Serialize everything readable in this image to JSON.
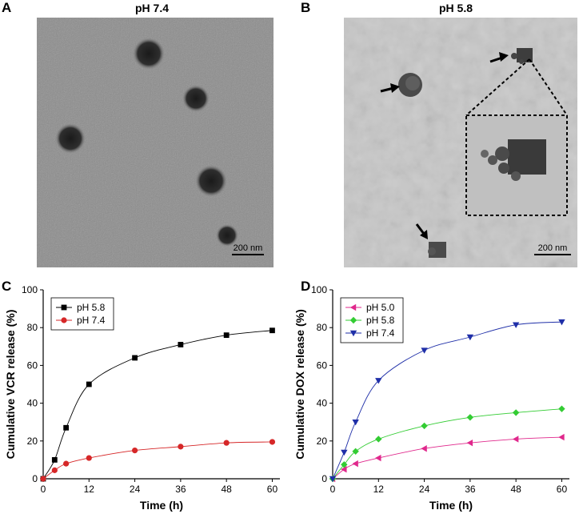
{
  "panels": {
    "a": {
      "letter": "A",
      "title": "pH 7.4",
      "scale": "200 nm"
    },
    "b": {
      "letter": "B",
      "title": "pH 5.8",
      "scale": "200 nm"
    },
    "c": {
      "letter": "C"
    },
    "d": {
      "letter": "D"
    }
  },
  "colors": {
    "black": "#000000",
    "red": "#d62728",
    "magenta": "#e0288c",
    "green": "#33cc33",
    "blue": "#1f2fa8"
  },
  "chart_data": [
    {
      "type": "line",
      "xlabel": "Time (h)",
      "ylabel": "Cumulative VCR release (%)",
      "xlim": [
        0,
        62
      ],
      "ylim": [
        0,
        100
      ],
      "xticks": [
        0,
        12,
        24,
        36,
        48,
        60
      ],
      "yticks": [
        0,
        20,
        40,
        60,
        80,
        100
      ],
      "legend_position": "top-left",
      "series": [
        {
          "name": "pH 5.8",
          "marker": "square",
          "color": "#000000",
          "x": [
            0,
            3,
            6,
            12,
            24,
            36,
            48,
            60
          ],
          "y": [
            0,
            10,
            27,
            50,
            64,
            71,
            76,
            78.5
          ]
        },
        {
          "name": "pH 7.4",
          "marker": "circle",
          "color": "#d62728",
          "x": [
            0,
            3,
            6,
            12,
            24,
            36,
            48,
            60
          ],
          "y": [
            0,
            4.5,
            8,
            11,
            15,
            17,
            19,
            19.5
          ]
        }
      ]
    },
    {
      "type": "line",
      "xlabel": "Time (h)",
      "ylabel": "Cumulative DOX release (%)",
      "xlim": [
        0,
        62
      ],
      "ylim": [
        0,
        100
      ],
      "xticks": [
        0,
        12,
        24,
        36,
        48,
        60
      ],
      "yticks": [
        0,
        20,
        40,
        60,
        80,
        100
      ],
      "legend_position": "top-left",
      "series": [
        {
          "name": "pH 5.0",
          "marker": "triangle-left",
          "color": "#e0288c",
          "x": [
            0,
            3,
            6,
            12,
            24,
            36,
            48,
            60
          ],
          "y": [
            0,
            5,
            8,
            11,
            16,
            19,
            21,
            22
          ]
        },
        {
          "name": "pH 5.8",
          "marker": "diamond",
          "color": "#33cc33",
          "x": [
            0,
            3,
            6,
            12,
            24,
            36,
            48,
            60
          ],
          "y": [
            0,
            7.5,
            14.5,
            21,
            28,
            32.5,
            35,
            37
          ]
        },
        {
          "name": "pH 7.4",
          "marker": "triangle-down",
          "color": "#1f2fa8",
          "x": [
            0,
            3,
            6,
            12,
            24,
            36,
            48,
            60
          ],
          "y": [
            0,
            14,
            30,
            52,
            68,
            75,
            81.5,
            83
          ]
        }
      ]
    }
  ]
}
